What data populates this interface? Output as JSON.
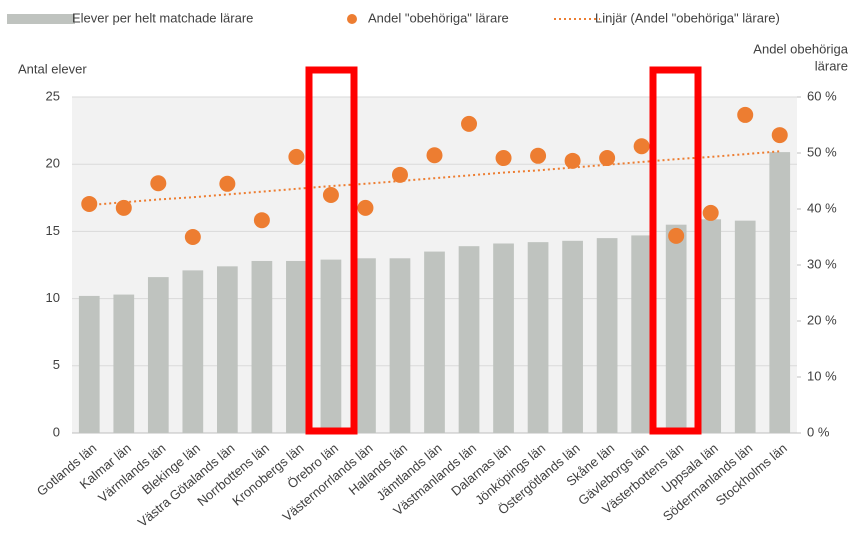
{
  "chart_data": {
    "type": "bar",
    "categories": [
      "Gotlands län",
      "Kalmar län",
      "Värmlands län",
      "Blekinge län",
      "Västra Götalands län",
      "Norrbottens län",
      "Kronobergs län",
      "Örebro län",
      "Västernorrlands län",
      "Hallands län",
      "Jämtlands län",
      "Västmanlands län",
      "Dalarnas län",
      "Jönköpings län",
      "Östergötlands län",
      "Skåne län",
      "Gävleborgs län",
      "Västerbottens län",
      "Uppsala län",
      "Södermanlands län",
      "Stockholms län"
    ],
    "series": [
      {
        "name": "Elever per helt matchade lärare",
        "type": "bar",
        "color": "#bfc3bf",
        "values": [
          10.2,
          10.3,
          11.6,
          12.1,
          12.4,
          12.8,
          12.8,
          12.9,
          13.0,
          13.0,
          13.5,
          13.9,
          14.1,
          14.2,
          14.3,
          14.5,
          14.7,
          15.5,
          15.9,
          15.8,
          20.9
        ]
      },
      {
        "name": "Andel \"obehöriga\" lärare",
        "type": "scatter",
        "axis": "y2",
        "color": "#ed7d31",
        "values": [
          40.9,
          40.2,
          44.6,
          35.0,
          44.5,
          38.0,
          49.3,
          42.5,
          40.2,
          46.1,
          49.6,
          55.2,
          49.1,
          49.5,
          48.6,
          49.1,
          51.2,
          35.2,
          39.3,
          56.8,
          53.2
        ]
      },
      {
        "name": "Linjär (Andel \"obehöriga\" lärare)",
        "type": "line",
        "axis": "y2",
        "color": "#ed7d31",
        "values": [
          40.7,
          41.2,
          41.7,
          42.1,
          42.6,
          43.1,
          43.6,
          44.1,
          44.5,
          45.0,
          45.5,
          46.0,
          46.5,
          46.9,
          47.4,
          47.9,
          48.4,
          48.9,
          49.3,
          49.8,
          50.3
        ]
      }
    ],
    "y_label": "Antal elever",
    "y2_label": [
      "Andel obehöriga",
      "lärare"
    ],
    "ylim": [
      0,
      25
    ],
    "yticks": [
      0,
      5,
      10,
      15,
      20,
      25
    ],
    "y2lim": [
      0,
      60
    ],
    "y2ticks": [
      {
        "value": 0,
        "label": "0 %"
      },
      {
        "value": 10,
        "label": "10 %"
      },
      {
        "value": 20,
        "label": "20 %"
      },
      {
        "value": 30,
        "label": "30 %"
      },
      {
        "value": 40,
        "label": "40 %"
      },
      {
        "value": 50,
        "label": "50 %"
      },
      {
        "value": 60,
        "label": "60 %"
      }
    ],
    "grid": true,
    "legend": "top"
  }
}
